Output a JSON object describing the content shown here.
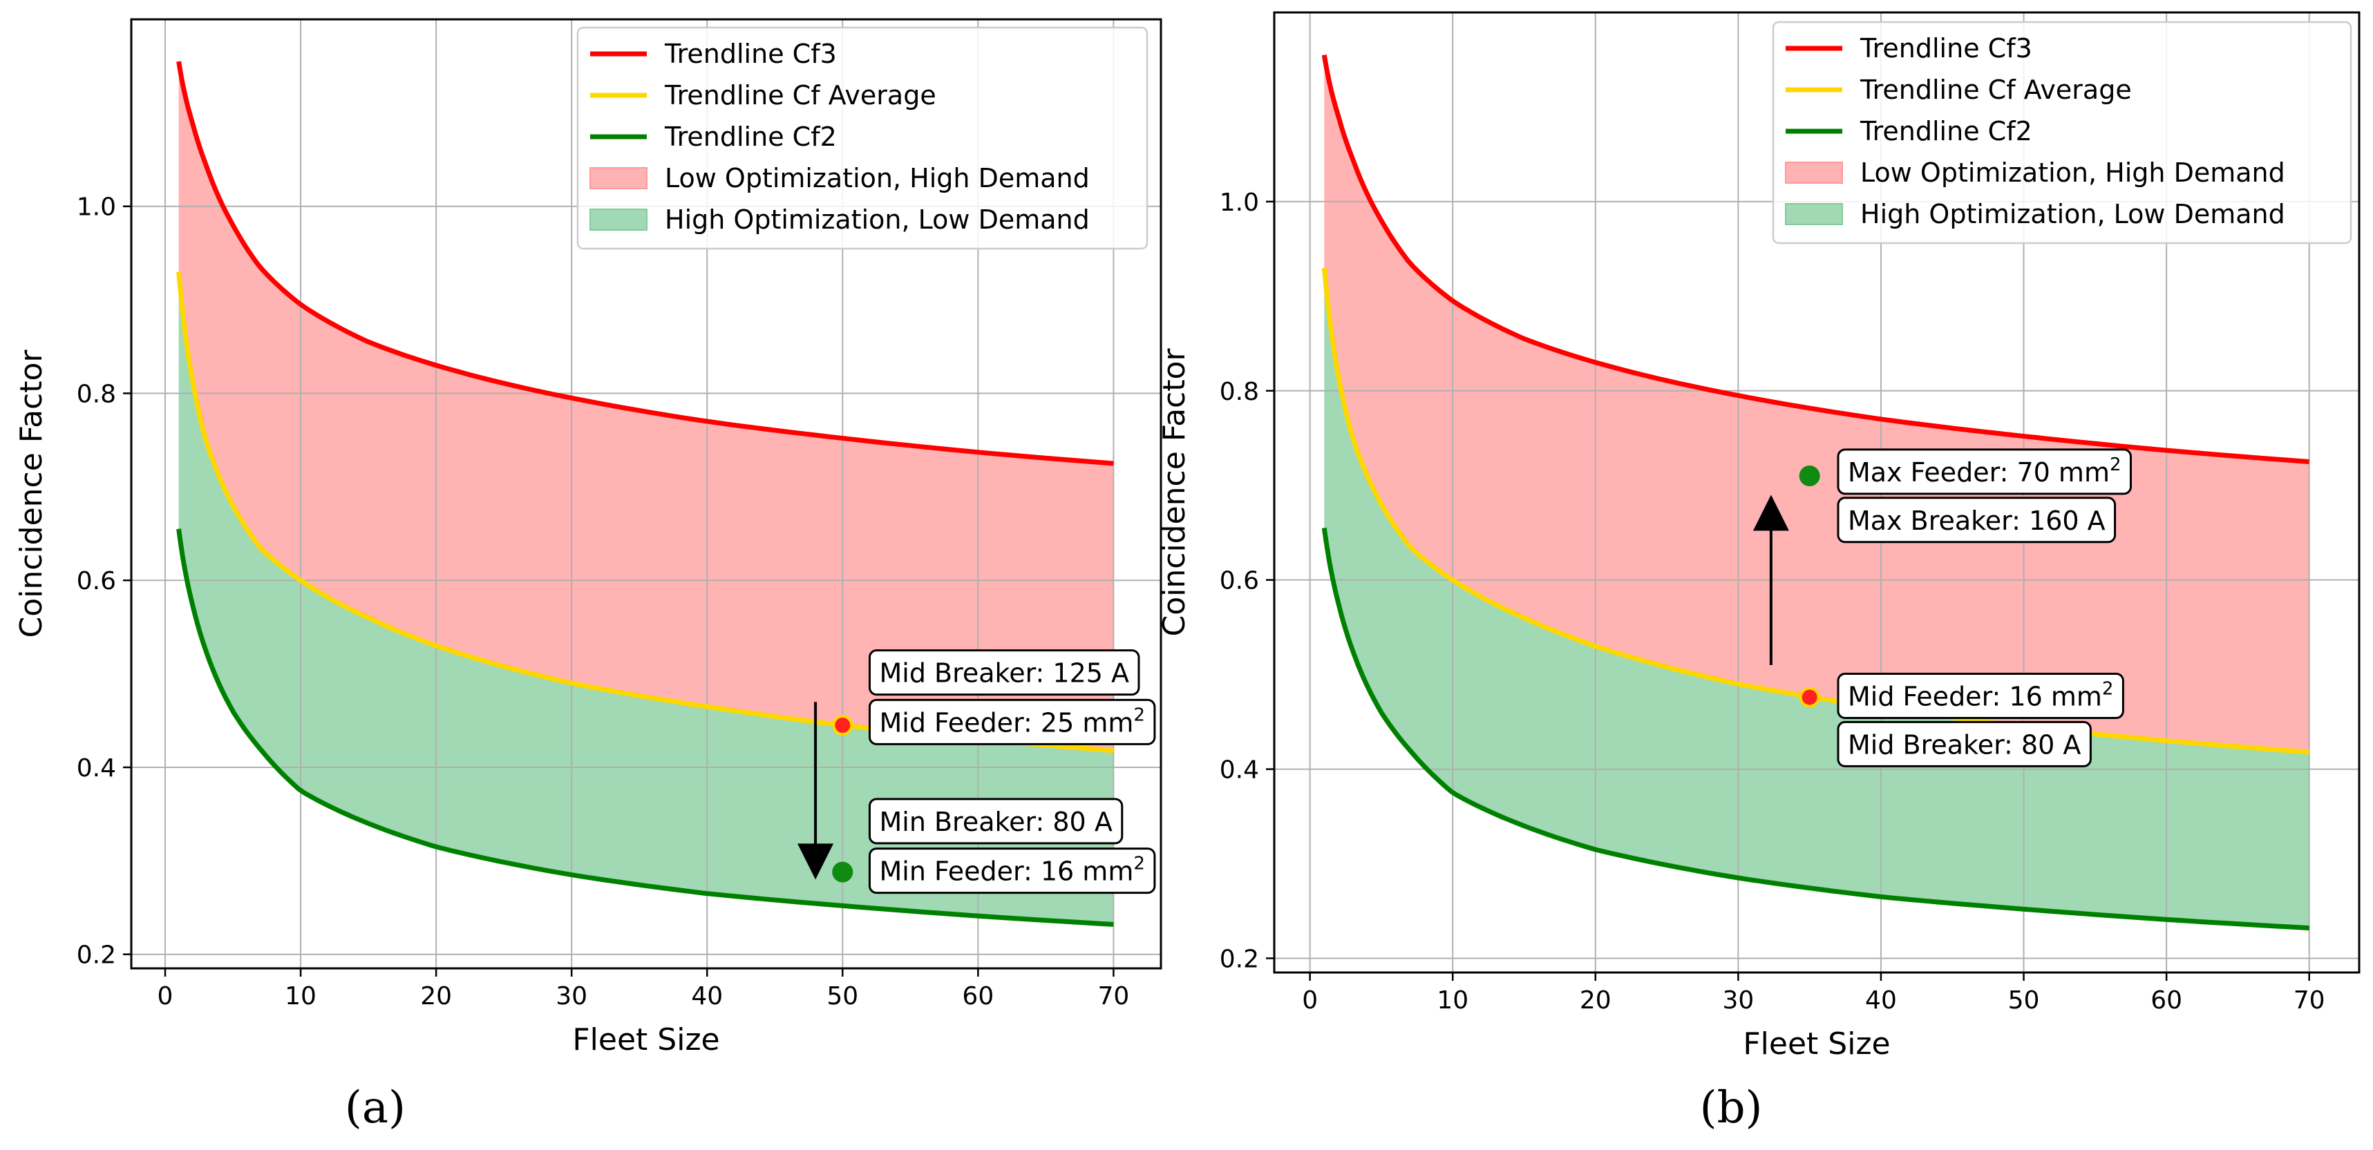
{
  "chart_data": [
    {
      "type": "area",
      "panel_label": "(a)",
      "xlabel": "Fleet Size",
      "ylabel": "Coincidence Factor",
      "xlim": [
        -2.5,
        73.5
      ],
      "ylim": [
        0.185,
        1.2
      ],
      "x_ticks": [
        "0",
        "10",
        "20",
        "30",
        "40",
        "50",
        "60",
        "70"
      ],
      "y_ticks": [
        "0.2",
        "0.4",
        "0.6",
        "0.8",
        "1.0"
      ],
      "grid": true,
      "legend_position": "top-right",
      "x": [
        1,
        2,
        3,
        5,
        7,
        10,
        15,
        20,
        30,
        40,
        50,
        60,
        70
      ],
      "series": [
        {
          "name": "Trendline Cf3",
          "color": "#ff0000",
          "values": [
            1.155,
            1.09,
            1.045,
            0.98,
            0.935,
            0.895,
            0.855,
            0.83,
            0.795,
            0.77,
            0.752,
            0.737,
            0.725
          ]
        },
        {
          "name": "Trendline Cf Average",
          "color": "#ffd700",
          "values": [
            0.93,
            0.815,
            0.75,
            0.68,
            0.635,
            0.6,
            0.56,
            0.53,
            0.49,
            0.465,
            0.445,
            0.43,
            0.418
          ]
        },
        {
          "name": "Trendline Cf2",
          "color": "#008000",
          "values": [
            0.655,
            0.575,
            0.525,
            0.46,
            0.42,
            0.375,
            0.34,
            0.315,
            0.285,
            0.265,
            0.252,
            0.241,
            0.232
          ]
        }
      ],
      "bands": [
        {
          "name": "Low Optimization, High Demand",
          "color": "#ff9999",
          "between": [
            "Trendline Cf3",
            "Trendline Cf Average"
          ]
        },
        {
          "name": "High Optimization, Low Demand",
          "color": "#80cc99",
          "between": [
            "Trendline Cf Average",
            "Trendline Cf2"
          ]
        }
      ],
      "points": [
        {
          "x": 50,
          "y": 0.445,
          "color": "#ff2020",
          "edge_color": "#ffd700"
        },
        {
          "x": 50,
          "y": 0.288,
          "color": "#108a10",
          "edge_color": "#108a10"
        }
      ],
      "arrow": {
        "x": 48,
        "y_from": 0.47,
        "y_to": 0.28
      },
      "annotations": [
        {
          "text": "Mid Breaker: 125 A",
          "sup": "",
          "x": 52,
          "y": 0.5
        },
        {
          "text": "Mid Feeder: 25 mm",
          "sup": "2",
          "x": 52,
          "y": 0.447
        },
        {
          "text": "Min Breaker: 80 A",
          "sup": "",
          "x": 52,
          "y": 0.341
        },
        {
          "text": "Min Feeder: 16 mm",
          "sup": "2",
          "x": 52,
          "y": 0.288
        }
      ]
    },
    {
      "type": "area",
      "panel_label": "(b)",
      "xlabel": "Fleet Size",
      "ylabel": "Coincidence Factor",
      "xlim": [
        -2.5,
        73.5
      ],
      "ylim": [
        0.185,
        1.2
      ],
      "x_ticks": [
        "0",
        "10",
        "20",
        "30",
        "40",
        "50",
        "60",
        "70"
      ],
      "y_ticks": [
        "0.2",
        "0.4",
        "0.6",
        "0.8",
        "1.0"
      ],
      "grid": true,
      "legend_position": "top-right",
      "x": [
        1,
        2,
        3,
        5,
        7,
        10,
        15,
        20,
        30,
        40,
        50,
        60,
        70
      ],
      "series": [
        {
          "name": "Trendline Cf3",
          "color": "#ff0000",
          "values": [
            1.155,
            1.09,
            1.045,
            0.98,
            0.935,
            0.895,
            0.855,
            0.83,
            0.795,
            0.77,
            0.752,
            0.737,
            0.725
          ]
        },
        {
          "name": "Trendline Cf Average",
          "color": "#ffd700",
          "values": [
            0.93,
            0.815,
            0.75,
            0.68,
            0.635,
            0.6,
            0.56,
            0.53,
            0.49,
            0.465,
            0.445,
            0.43,
            0.418
          ]
        },
        {
          "name": "Trendline Cf2",
          "color": "#008000",
          "values": [
            0.655,
            0.575,
            0.525,
            0.46,
            0.42,
            0.375,
            0.34,
            0.315,
            0.285,
            0.265,
            0.252,
            0.241,
            0.232
          ]
        }
      ],
      "bands": [
        {
          "name": "Low Optimization, High Demand",
          "color": "#ff9999",
          "between": [
            "Trendline Cf3",
            "Trendline Cf Average"
          ]
        },
        {
          "name": "High Optimization, Low Demand",
          "color": "#80cc99",
          "between": [
            "Trendline Cf Average",
            "Trendline Cf2"
          ]
        }
      ],
      "points": [
        {
          "x": 35,
          "y": 0.71,
          "color": "#108a10",
          "edge_color": "#108a10"
        },
        {
          "x": 35,
          "y": 0.476,
          "color": "#ff2020",
          "edge_color": "#ffd700"
        }
      ],
      "arrow": {
        "x": 32.3,
        "y_from": 0.51,
        "y_to": 0.69
      },
      "annotations": [
        {
          "text": "Max Feeder: 70 mm",
          "sup": "2",
          "x": 37,
          "y": 0.713
        },
        {
          "text": "Max Breaker: 160 A",
          "sup": "",
          "x": 37,
          "y": 0.662
        },
        {
          "text": "Mid Feeder: 16 mm",
          "sup": "2",
          "x": 37,
          "y": 0.476
        },
        {
          "text": "Mid Breaker: 80 A",
          "sup": "",
          "x": 37,
          "y": 0.425
        }
      ]
    }
  ]
}
